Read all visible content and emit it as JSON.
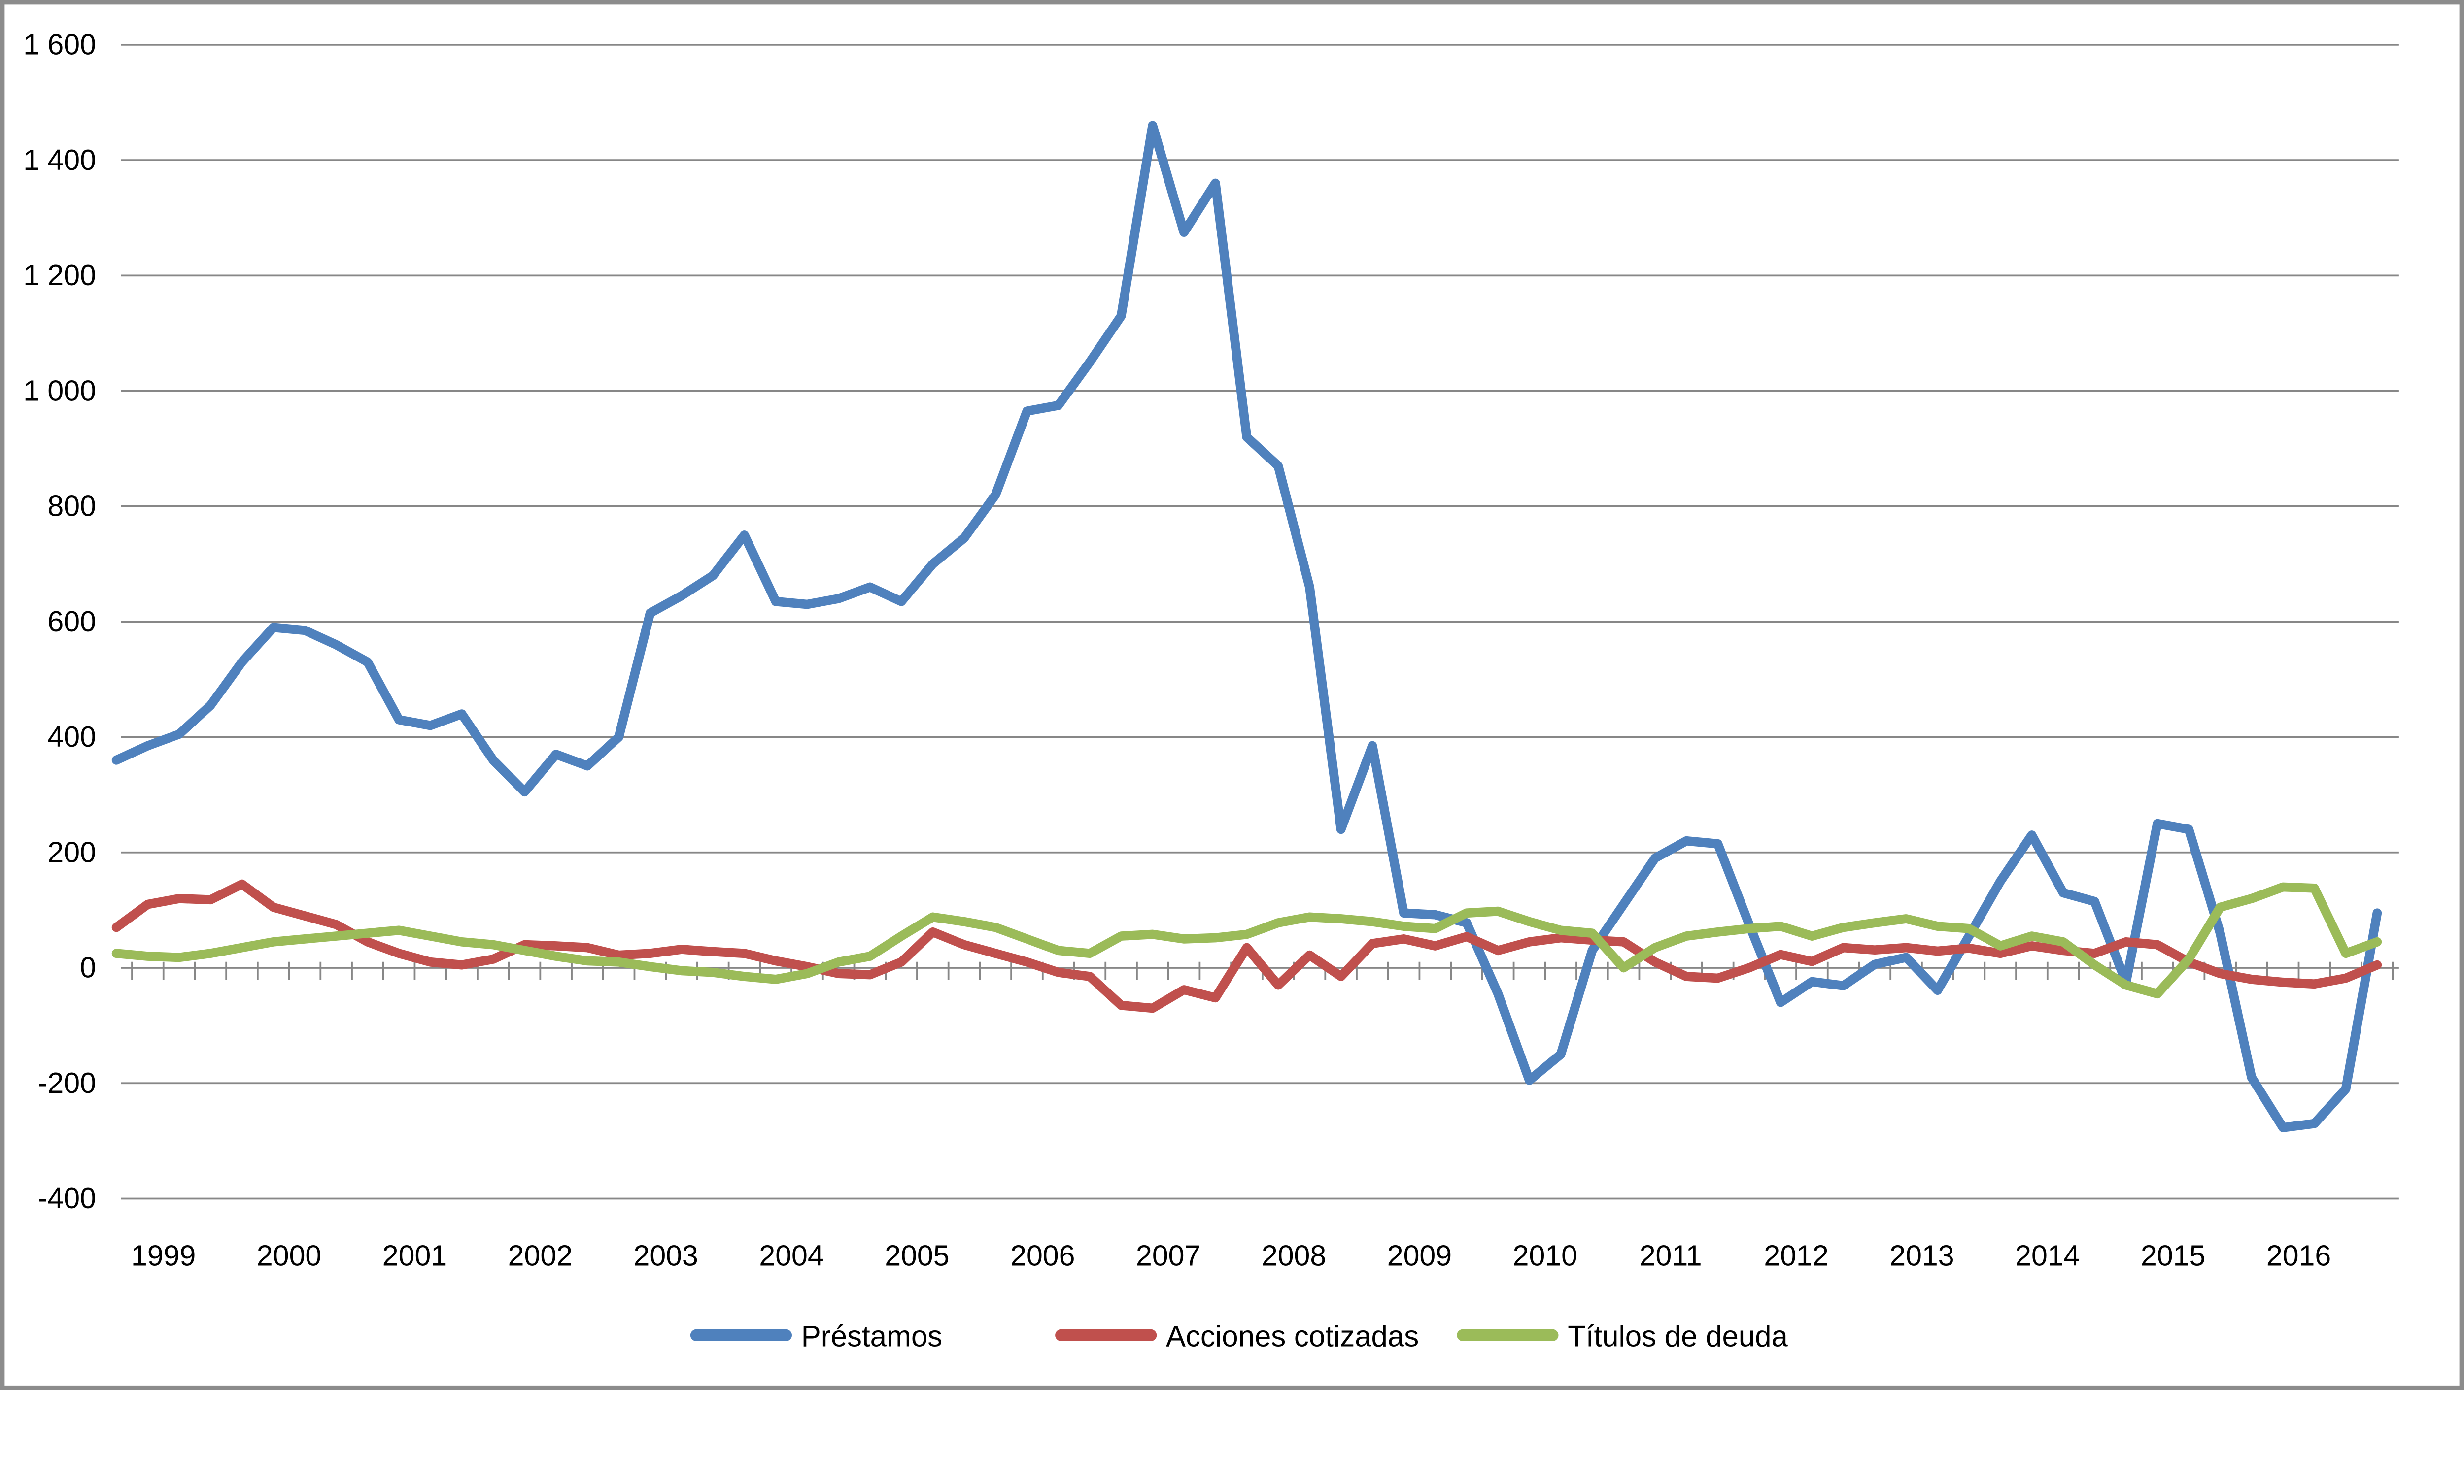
{
  "chart_data": {
    "type": "line",
    "title": "",
    "xlabel": "",
    "ylabel": "",
    "grid": "horizontal-only",
    "legend_position": "bottom-center",
    "y_axis": {
      "min": -400,
      "max": 1600,
      "step": 200,
      "tick_labels": [
        "1 600",
        "1 400",
        "1 200",
        "1 000",
        "800",
        "600",
        "400",
        "200",
        "0",
        "-200",
        "-400"
      ]
    },
    "x_axis": {
      "frequency": "quarterly",
      "year_tick_labels": [
        "1999",
        "2000",
        "2001",
        "2002",
        "2003",
        "2004",
        "2005",
        "2006",
        "2007",
        "2008",
        "2009",
        "2010",
        "2011",
        "2012",
        "2013",
        "2014",
        "2015",
        "2016"
      ],
      "categories": [
        "1999Q1",
        "1999Q2",
        "1999Q3",
        "1999Q4",
        "2000Q1",
        "2000Q2",
        "2000Q3",
        "2000Q4",
        "2001Q1",
        "2001Q2",
        "2001Q3",
        "2001Q4",
        "2002Q1",
        "2002Q2",
        "2002Q3",
        "2002Q4",
        "2003Q1",
        "2003Q2",
        "2003Q3",
        "2003Q4",
        "2004Q1",
        "2004Q2",
        "2004Q3",
        "2004Q4",
        "2005Q1",
        "2005Q2",
        "2005Q3",
        "2005Q4",
        "2006Q1",
        "2006Q2",
        "2006Q3",
        "2006Q4",
        "2007Q1",
        "2007Q2",
        "2007Q3",
        "2007Q4",
        "2008Q1",
        "2008Q2",
        "2008Q3",
        "2008Q4",
        "2009Q1",
        "2009Q2",
        "2009Q3",
        "2009Q4",
        "2010Q1",
        "2010Q2",
        "2010Q3",
        "2010Q4",
        "2011Q1",
        "2011Q2",
        "2011Q3",
        "2011Q4",
        "2012Q1",
        "2012Q2",
        "2012Q3",
        "2012Q4",
        "2013Q1",
        "2013Q2",
        "2013Q3",
        "2013Q4",
        "2014Q1",
        "2014Q2",
        "2014Q3",
        "2014Q4",
        "2015Q1",
        "2015Q2",
        "2015Q3",
        "2015Q4",
        "2016Q1",
        "2016Q2",
        "2016Q3",
        "2016Q4",
        "2017Q1"
      ]
    },
    "series": [
      {
        "name": "Préstamos",
        "color": "#4F81BD",
        "values": [
          360,
          385,
          405,
          455,
          530,
          590,
          585,
          560,
          530,
          430,
          420,
          440,
          360,
          305,
          370,
          350,
          400,
          615,
          645,
          680,
          750,
          635,
          630,
          640,
          660,
          635,
          700,
          745,
          820,
          965,
          975,
          1050,
          1130,
          1460,
          1275,
          1360,
          920,
          870,
          660,
          240,
          385,
          95,
          92,
          78,
          -45,
          -195,
          -150,
          30,
          110,
          190,
          220,
          215,
          75,
          -60,
          -24,
          -31,
          6,
          18,
          -39,
          55,
          150,
          230,
          130,
          115,
          -25,
          250,
          240,
          60,
          -190,
          -277,
          -270,
          -210,
          95
        ]
      },
      {
        "name": "Acciones cotizadas",
        "color": "#C0504D",
        "values": [
          70,
          110,
          120,
          118,
          145,
          105,
          90,
          75,
          45,
          25,
          10,
          5,
          15,
          40,
          38,
          35,
          22,
          25,
          32,
          28,
          25,
          12,
          2,
          -10,
          -12,
          10,
          62,
          40,
          25,
          10,
          -8,
          -15,
          -65,
          -70,
          -38,
          -52,
          35,
          -30,
          22,
          -15,
          42,
          50,
          38,
          54,
          30,
          45,
          52,
          48,
          45,
          10,
          -15,
          -18,
          0,
          23,
          11,
          35,
          31,
          35,
          29,
          34,
          25,
          38,
          30,
          25,
          45,
          40,
          10,
          -10,
          -20,
          -25,
          -28,
          -18,
          5
        ]
      },
      {
        "name": "Títulos de deuda",
        "color": "#9BBB59",
        "values": [
          25,
          20,
          18,
          25,
          35,
          45,
          50,
          55,
          60,
          65,
          55,
          45,
          40,
          30,
          20,
          12,
          10,
          2,
          -5,
          -8,
          -15,
          -20,
          -10,
          10,
          20,
          55,
          88,
          80,
          70,
          50,
          30,
          25,
          55,
          58,
          50,
          52,
          58,
          78,
          88,
          85,
          80,
          72,
          68,
          95,
          98,
          80,
          65,
          60,
          0,
          35,
          55,
          62,
          68,
          72,
          55,
          70,
          78,
          85,
          72,
          68,
          38,
          55,
          45,
          5,
          -30,
          -45,
          15,
          105,
          120,
          140,
          138,
          25,
          45
        ]
      }
    ]
  },
  "styles": {
    "grid_color": "#878787",
    "axis_color": "#878787",
    "tick_color": "#878787",
    "text_color": "#000000",
    "background_color": "#FFFFFF",
    "border_color": "#8C8C8C"
  }
}
